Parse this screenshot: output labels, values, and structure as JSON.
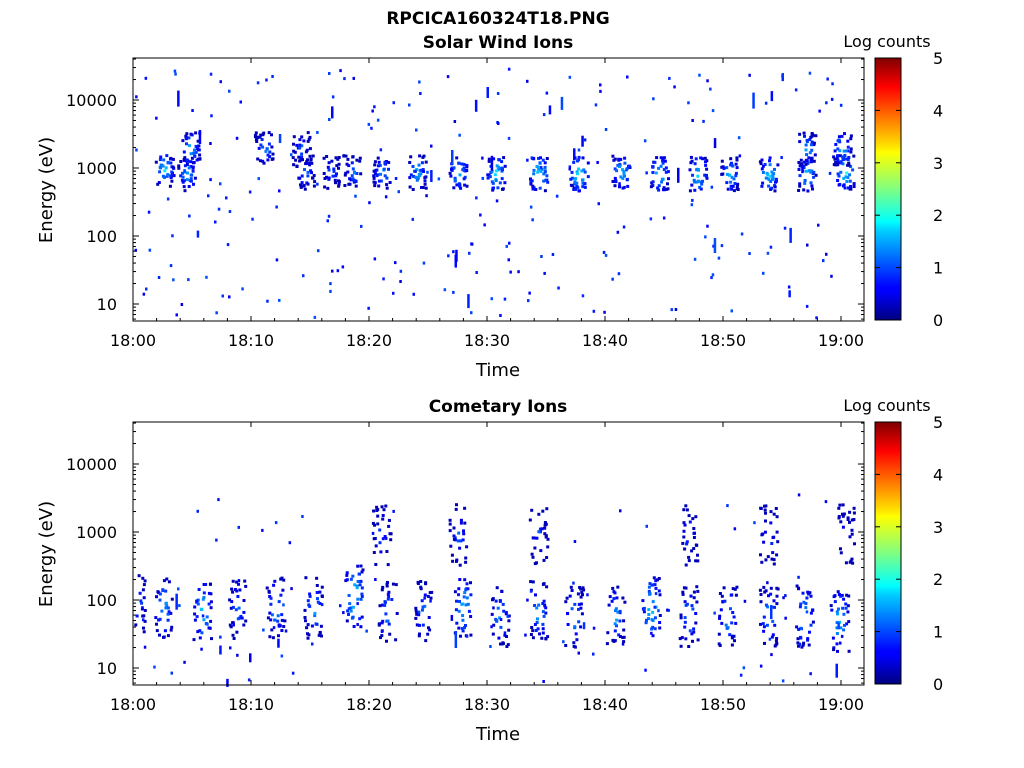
{
  "figure_title": "RPCICA160324T18.PNG",
  "chart_data": [
    {
      "type": "heatmap",
      "title": "Solar Wind Ions",
      "xlabel": "Time",
      "ylabel": "Energy (eV)",
      "x_ticks": [
        "18:00",
        "18:10",
        "18:20",
        "18:30",
        "18:40",
        "18:50",
        "19:00"
      ],
      "y_ticks": [
        "10",
        "100",
        "1000",
        "10000"
      ],
      "y_scale": "log",
      "x_range": [
        "18:00",
        "19:01"
      ],
      "y_range_eV": [
        6,
        45000
      ],
      "colorbar": {
        "label": "Log counts",
        "ticks": [
          "0",
          "1",
          "2",
          "3",
          "4",
          "5"
        ],
        "range": [
          0,
          5
        ],
        "colormap": "jet"
      },
      "clusters": [
        {
          "t": 2.6,
          "e": 1000,
          "log_counts": 1.8
        },
        {
          "t": 4.5,
          "e": 850,
          "log_counts": 1.6
        },
        {
          "t": 4.8,
          "e": 2000,
          "log_counts": 1.7
        },
        {
          "t": 11.0,
          "e": 2000,
          "log_counts": 1.5
        },
        {
          "t": 14.2,
          "e": 2000,
          "log_counts": 1.3
        },
        {
          "t": 14.5,
          "e": 900,
          "log_counts": 1.4
        },
        {
          "t": 16.7,
          "e": 900,
          "log_counts": 1.2
        },
        {
          "t": 18.5,
          "e": 900,
          "log_counts": 1.4
        },
        {
          "t": 21.0,
          "e": 900,
          "log_counts": 1.6
        },
        {
          "t": 24.0,
          "e": 900,
          "log_counts": 1.7
        },
        {
          "t": 27.5,
          "e": 900,
          "log_counts": 1.8
        },
        {
          "t": 30.7,
          "e": 850,
          "log_counts": 1.9
        },
        {
          "t": 34.3,
          "e": 850,
          "log_counts": 2.0
        },
        {
          "t": 37.7,
          "e": 850,
          "log_counts": 2.0
        },
        {
          "t": 41.3,
          "e": 900,
          "log_counts": 1.8
        },
        {
          "t": 44.5,
          "e": 850,
          "log_counts": 1.9
        },
        {
          "t": 47.8,
          "e": 850,
          "log_counts": 1.9
        },
        {
          "t": 50.5,
          "e": 850,
          "log_counts": 1.7
        },
        {
          "t": 53.8,
          "e": 850,
          "log_counts": 1.9
        },
        {
          "t": 57.0,
          "e": 850,
          "log_counts": 1.8
        },
        {
          "t": 60.3,
          "e": 900,
          "log_counts": 1.9
        },
        {
          "t": 57.0,
          "e": 2000,
          "log_counts": 1.6
        },
        {
          "t": 60.0,
          "e": 2000,
          "log_counts": 1.7
        }
      ]
    },
    {
      "type": "heatmap",
      "title": "Cometary Ions",
      "xlabel": "Time",
      "ylabel": "Energy (eV)",
      "x_ticks": [
        "18:00",
        "18:10",
        "18:20",
        "18:30",
        "18:40",
        "18:50",
        "19:00"
      ],
      "y_ticks": [
        "10",
        "100",
        "1000",
        "10000"
      ],
      "y_scale": "log",
      "x_range": [
        "18:00",
        "19:01"
      ],
      "y_range_eV": [
        6,
        45000
      ],
      "colorbar": {
        "label": "Log counts",
        "ticks": [
          "0",
          "1",
          "2",
          "3",
          "4",
          "5"
        ],
        "range": [
          0,
          5
        ],
        "colormap": "jet"
      },
      "clusters": [
        {
          "t": 0.2,
          "e": 100,
          "log_counts": 1.4
        },
        {
          "t": 2.5,
          "e": 80,
          "log_counts": 1.6
        },
        {
          "t": 5.8,
          "e": 70,
          "log_counts": 1.8
        },
        {
          "t": 8.8,
          "e": 80,
          "log_counts": 1.4
        },
        {
          "t": 12.0,
          "e": 80,
          "log_counts": 1.6
        },
        {
          "t": 15.2,
          "e": 80,
          "log_counts": 1.6
        },
        {
          "t": 18.6,
          "e": 120,
          "log_counts": 2.0
        },
        {
          "t": 21.5,
          "e": 70,
          "log_counts": 1.4
        },
        {
          "t": 24.5,
          "e": 70,
          "log_counts": 1.4
        },
        {
          "t": 27.9,
          "e": 80,
          "log_counts": 1.8
        },
        {
          "t": 31.0,
          "e": 60,
          "log_counts": 1.5
        },
        {
          "t": 34.3,
          "e": 70,
          "log_counts": 1.6
        },
        {
          "t": 37.3,
          "e": 60,
          "log_counts": 1.5
        },
        {
          "t": 40.8,
          "e": 60,
          "log_counts": 1.5
        },
        {
          "t": 43.8,
          "e": 80,
          "log_counts": 1.9
        },
        {
          "t": 47.0,
          "e": 60,
          "log_counts": 1.5
        },
        {
          "t": 50.3,
          "e": 60,
          "log_counts": 1.6
        },
        {
          "t": 53.8,
          "e": 60,
          "log_counts": 1.6
        },
        {
          "t": 56.8,
          "e": 60,
          "log_counts": 1.7
        },
        {
          "t": 59.8,
          "e": 50,
          "log_counts": 1.8
        },
        {
          "t": 21.0,
          "e": 950,
          "log_counts": 1.2
        },
        {
          "t": 27.5,
          "e": 950,
          "log_counts": 1.2
        },
        {
          "t": 34.3,
          "e": 950,
          "log_counts": 1.1
        },
        {
          "t": 47.0,
          "e": 950,
          "log_counts": 1.1
        },
        {
          "t": 53.8,
          "e": 950,
          "log_counts": 1.2
        },
        {
          "t": 60.3,
          "e": 950,
          "log_counts": 1.1
        }
      ]
    }
  ]
}
